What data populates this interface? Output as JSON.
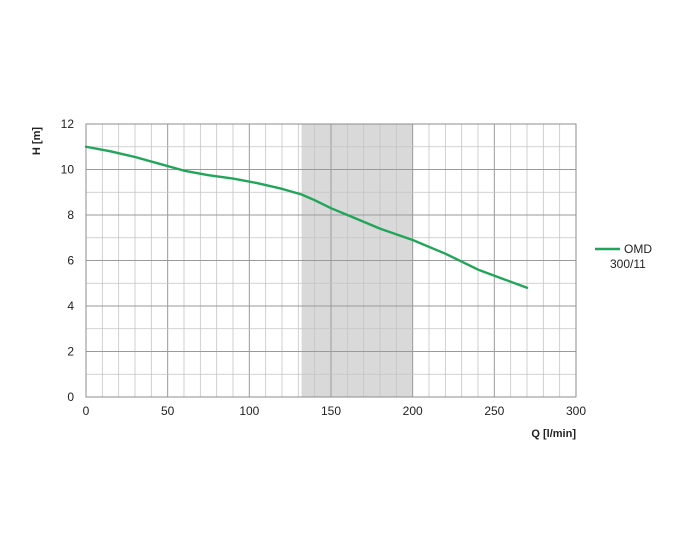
{
  "chart_data": {
    "type": "line",
    "title": "",
    "xlabel": "Q [l/min]",
    "ylabel": "H [m]",
    "xlim": [
      0,
      300
    ],
    "ylim": [
      0,
      12
    ],
    "xticks": [
      0,
      50,
      100,
      150,
      200,
      250,
      300
    ],
    "yticks": [
      0,
      2,
      4,
      6,
      8,
      10,
      12
    ],
    "x_minor_step": 10,
    "y_minor_step": 1,
    "grid": true,
    "legend_position": "right",
    "highlight_band": {
      "x_start": 132,
      "x_end": 200,
      "color": "#d9d9d9"
    },
    "series": [
      {
        "name": "OMD 300/11",
        "legend_lines": [
          "OMD",
          "300/11"
        ],
        "color": "#22a55a",
        "x": [
          0,
          15,
          30,
          45,
          60,
          75,
          90,
          105,
          120,
          132,
          140,
          150,
          165,
          180,
          200,
          220,
          240,
          255,
          270
        ],
        "y": [
          11.0,
          10.8,
          10.55,
          10.25,
          9.95,
          9.75,
          9.6,
          9.4,
          9.15,
          8.9,
          8.65,
          8.3,
          7.85,
          7.4,
          6.9,
          6.3,
          5.6,
          5.2,
          4.8
        ]
      }
    ]
  }
}
